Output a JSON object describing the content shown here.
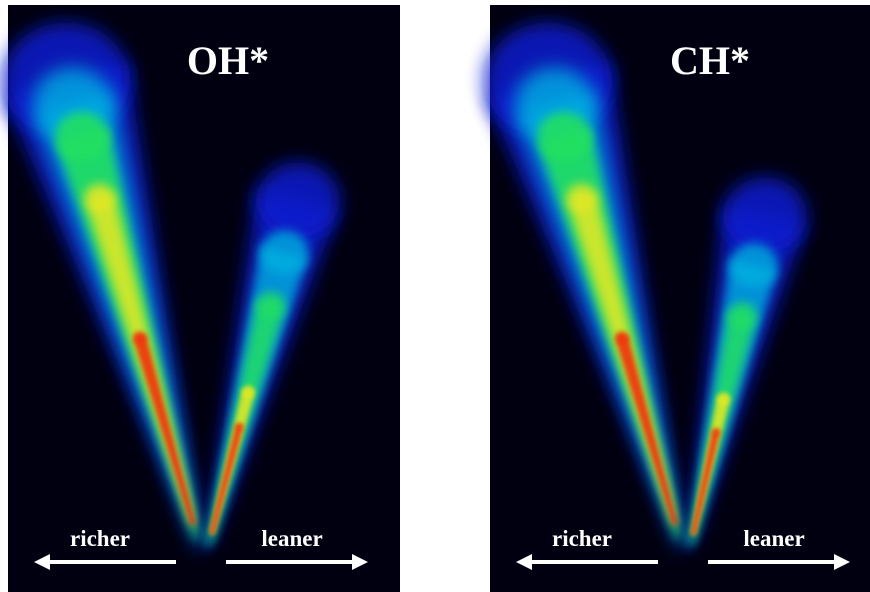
{
  "panels": [
    {
      "label": "OH*",
      "left_label": "richer",
      "right_label": "leaner"
    },
    {
      "label": "CH*",
      "left_label": "richer",
      "right_label": "leaner"
    }
  ]
}
